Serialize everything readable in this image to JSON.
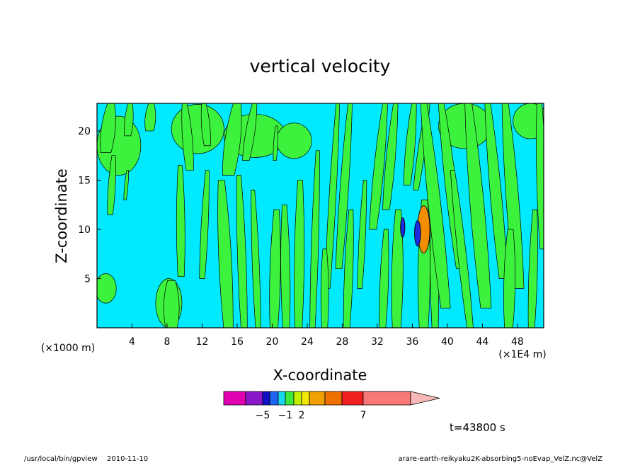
{
  "chart_data": {
    "type": "heatmap",
    "title": "vertical velocity",
    "xlabel": "X-coordinate",
    "ylabel": "Z-coordinate",
    "x_unit_left": "(×1000 m)",
    "x_unit_right": "(×1E4 m)",
    "xlim": [
      0,
      51
    ],
    "ylim": [
      0,
      22.8
    ],
    "xticks": [
      4,
      8,
      12,
      16,
      20,
      24,
      28,
      32,
      36,
      40,
      44,
      48
    ],
    "yticks": [
      5,
      10,
      15,
      20
    ],
    "colorbar": {
      "colors": [
        "#e000b0",
        "#8a18c8",
        "#1010c8",
        "#1e64f0",
        "#18d8f0",
        "#3ce83c",
        "#c0f000",
        "#f0e800",
        "#f0a000",
        "#f07000",
        "#f02020",
        "#f87878",
        "#f8b8b8"
      ],
      "tick_labels": [
        {
          "text": "−5",
          "at_box": 2
        },
        {
          "text": "−1",
          "at_box": 5
        },
        {
          "text": "2",
          "at_box": 7
        },
        {
          "text": "7",
          "at_box": 11
        }
      ]
    },
    "field_colors": {
      "background": "#00eaff",
      "positive": "#3df23d",
      "negative_strong": "#1c2be0",
      "positive_strong": "#f08e00"
    },
    "streaks": [
      {
        "x": 1.0,
        "z0": 17.8,
        "z1": 22.8,
        "w": 2.0,
        "tilt": 0.6
      },
      {
        "x": 3.5,
        "z0": 19.5,
        "z1": 22.8,
        "w": 1.2,
        "tilt": 0.3
      },
      {
        "x": 6.0,
        "z0": 20.0,
        "z1": 22.8,
        "w": 1.5,
        "tilt": 0.2
      },
      {
        "x": 1.5,
        "z0": 11.5,
        "z1": 17.5,
        "w": 1.0,
        "tilt": 0.4
      },
      {
        "x": 3.2,
        "z0": 13.0,
        "z1": 16.0,
        "w": 0.5,
        "tilt": 0.3
      },
      {
        "x": 9.6,
        "z0": 5.2,
        "z1": 16.5,
        "w": 1.2,
        "tilt": -0.1
      },
      {
        "x": 8.5,
        "z0": 0.0,
        "z1": 4.8,
        "w": 2.2,
        "tilt": 0.0
      },
      {
        "x": 10.6,
        "z0": 16.0,
        "z1": 22.8,
        "w": 1.4,
        "tilt": -0.6
      },
      {
        "x": 12.6,
        "z0": 18.5,
        "z1": 22.8,
        "w": 1.2,
        "tilt": -0.4
      },
      {
        "x": 12.0,
        "z0": 5.0,
        "z1": 16.0,
        "w": 1.0,
        "tilt": 0.6
      },
      {
        "x": 15.0,
        "z0": 15.5,
        "z1": 22.8,
        "w": 2.2,
        "tilt": 1.0
      },
      {
        "x": 17.0,
        "z0": 17.0,
        "z1": 22.8,
        "w": 1.3,
        "tilt": 1.0
      },
      {
        "x": 20.3,
        "z0": 17.0,
        "z1": 20.5,
        "w": 0.6,
        "tilt": 0.2
      },
      {
        "x": 15.0,
        "z0": 0.0,
        "z1": 15.0,
        "w": 1.8,
        "tilt": -0.8
      },
      {
        "x": 16.8,
        "z0": 0.0,
        "z1": 15.5,
        "w": 1.2,
        "tilt": -0.6
      },
      {
        "x": 18.4,
        "z0": 0.0,
        "z1": 14.0,
        "w": 1.0,
        "tilt": -0.6
      },
      {
        "x": 20.2,
        "z0": 0.0,
        "z1": 12.0,
        "w": 1.5,
        "tilt": 0.3
      },
      {
        "x": 21.6,
        "z0": 0.0,
        "z1": 12.5,
        "w": 1.3,
        "tilt": -0.2
      },
      {
        "x": 23.0,
        "z0": 0.0,
        "z1": 15.0,
        "w": 1.4,
        "tilt": 0.2
      },
      {
        "x": 24.6,
        "z0": 0.0,
        "z1": 18.0,
        "w": 1.0,
        "tilt": 0.6
      },
      {
        "x": 26.3,
        "z0": 4.0,
        "z1": 22.8,
        "w": 1.0,
        "tilt": 1.2
      },
      {
        "x": 27.6,
        "z0": 6.0,
        "z1": 22.8,
        "w": 1.2,
        "tilt": 1.3
      },
      {
        "x": 26.0,
        "z0": 0.0,
        "z1": 8.0,
        "w": 1.1,
        "tilt": 0.0
      },
      {
        "x": 28.5,
        "z0": 0.0,
        "z1": 12.0,
        "w": 1.2,
        "tilt": 0.5
      },
      {
        "x": 30.0,
        "z0": 4.0,
        "z1": 15.0,
        "w": 0.9,
        "tilt": 0.6
      },
      {
        "x": 31.5,
        "z0": 10.0,
        "z1": 22.8,
        "w": 1.4,
        "tilt": 1.4
      },
      {
        "x": 33.0,
        "z0": 12.0,
        "z1": 22.8,
        "w": 1.3,
        "tilt": 1.1
      },
      {
        "x": 32.6,
        "z0": 0.0,
        "z1": 10.0,
        "w": 1.2,
        "tilt": 0.4
      },
      {
        "x": 34.2,
        "z0": 0.0,
        "z1": 12.0,
        "w": 1.6,
        "tilt": 0.2
      },
      {
        "x": 35.4,
        "z0": 14.5,
        "z1": 22.8,
        "w": 1.3,
        "tilt": 0.8
      },
      {
        "x": 36.4,
        "z0": 14.0,
        "z1": 22.8,
        "w": 1.0,
        "tilt": 1.4
      },
      {
        "x": 37.3,
        "z0": 0.0,
        "z1": 13.0,
        "w": 1.7,
        "tilt": 0.1
      },
      {
        "x": 38.6,
        "z0": 0.0,
        "z1": 13.0,
        "w": 1.2,
        "tilt": -0.2
      },
      {
        "x": 39.8,
        "z0": 2.0,
        "z1": 22.8,
        "w": 1.8,
        "tilt": -2.5
      },
      {
        "x": 41.5,
        "z0": 6.0,
        "z1": 22.8,
        "w": 1.6,
        "tilt": -2.2
      },
      {
        "x": 42.6,
        "z0": 0.0,
        "z1": 16.0,
        "w": 1.2,
        "tilt": -2.0
      },
      {
        "x": 44.4,
        "z0": 2.0,
        "z1": 22.8,
        "w": 2.0,
        "tilt": -2.0
      },
      {
        "x": 46.4,
        "z0": 5.0,
        "z1": 22.8,
        "w": 1.6,
        "tilt": -1.8
      },
      {
        "x": 48.2,
        "z0": 4.0,
        "z1": 22.8,
        "w": 1.8,
        "tilt": -1.6
      },
      {
        "x": 47.0,
        "z0": 0.0,
        "z1": 10.0,
        "w": 1.6,
        "tilt": 0.2
      },
      {
        "x": 49.6,
        "z0": 0.0,
        "z1": 12.0,
        "w": 1.2,
        "tilt": 0.4
      },
      {
        "x": 51.0,
        "z0": 8.0,
        "z1": 22.8,
        "w": 1.4,
        "tilt": -0.5
      }
    ],
    "blobs": [
      {
        "x": 2.5,
        "z": 18.5,
        "rx": 2.5,
        "rz": 3.0
      },
      {
        "x": 11.5,
        "z": 20.2,
        "rx": 3.0,
        "rz": 2.5
      },
      {
        "x": 18.0,
        "z": 19.5,
        "rx": 3.5,
        "rz": 2.2
      },
      {
        "x": 22.5,
        "z": 19.0,
        "rx": 2.0,
        "rz": 1.8
      },
      {
        "x": 42.0,
        "z": 20.5,
        "rx": 3.0,
        "rz": 2.3
      },
      {
        "x": 49.5,
        "z": 21.0,
        "rx": 2.0,
        "rz": 1.8
      },
      {
        "x": 8.2,
        "z": 2.5,
        "rx": 1.5,
        "rz": 2.5
      },
      {
        "x": 1.0,
        "z": 4.0,
        "rx": 1.2,
        "rz": 1.5
      }
    ],
    "cores": [
      {
        "x": 37.3,
        "z": 10.0,
        "rx": 0.7,
        "rz": 2.4,
        "color": "positive_strong"
      },
      {
        "x": 36.6,
        "z": 9.6,
        "rx": 0.35,
        "rz": 1.3,
        "color": "negative_strong"
      },
      {
        "x": 34.9,
        "z": 10.2,
        "rx": 0.25,
        "rz": 1.0,
        "color": "negative_strong"
      }
    ]
  },
  "footer": {
    "time_label": "t=43800 s",
    "program": "/usr/local/bin/gpview",
    "date": "2010-11-10",
    "source": "arare-earth-reikyaku2K-absorbing5-noEvap_VelZ.nc@VelZ"
  }
}
